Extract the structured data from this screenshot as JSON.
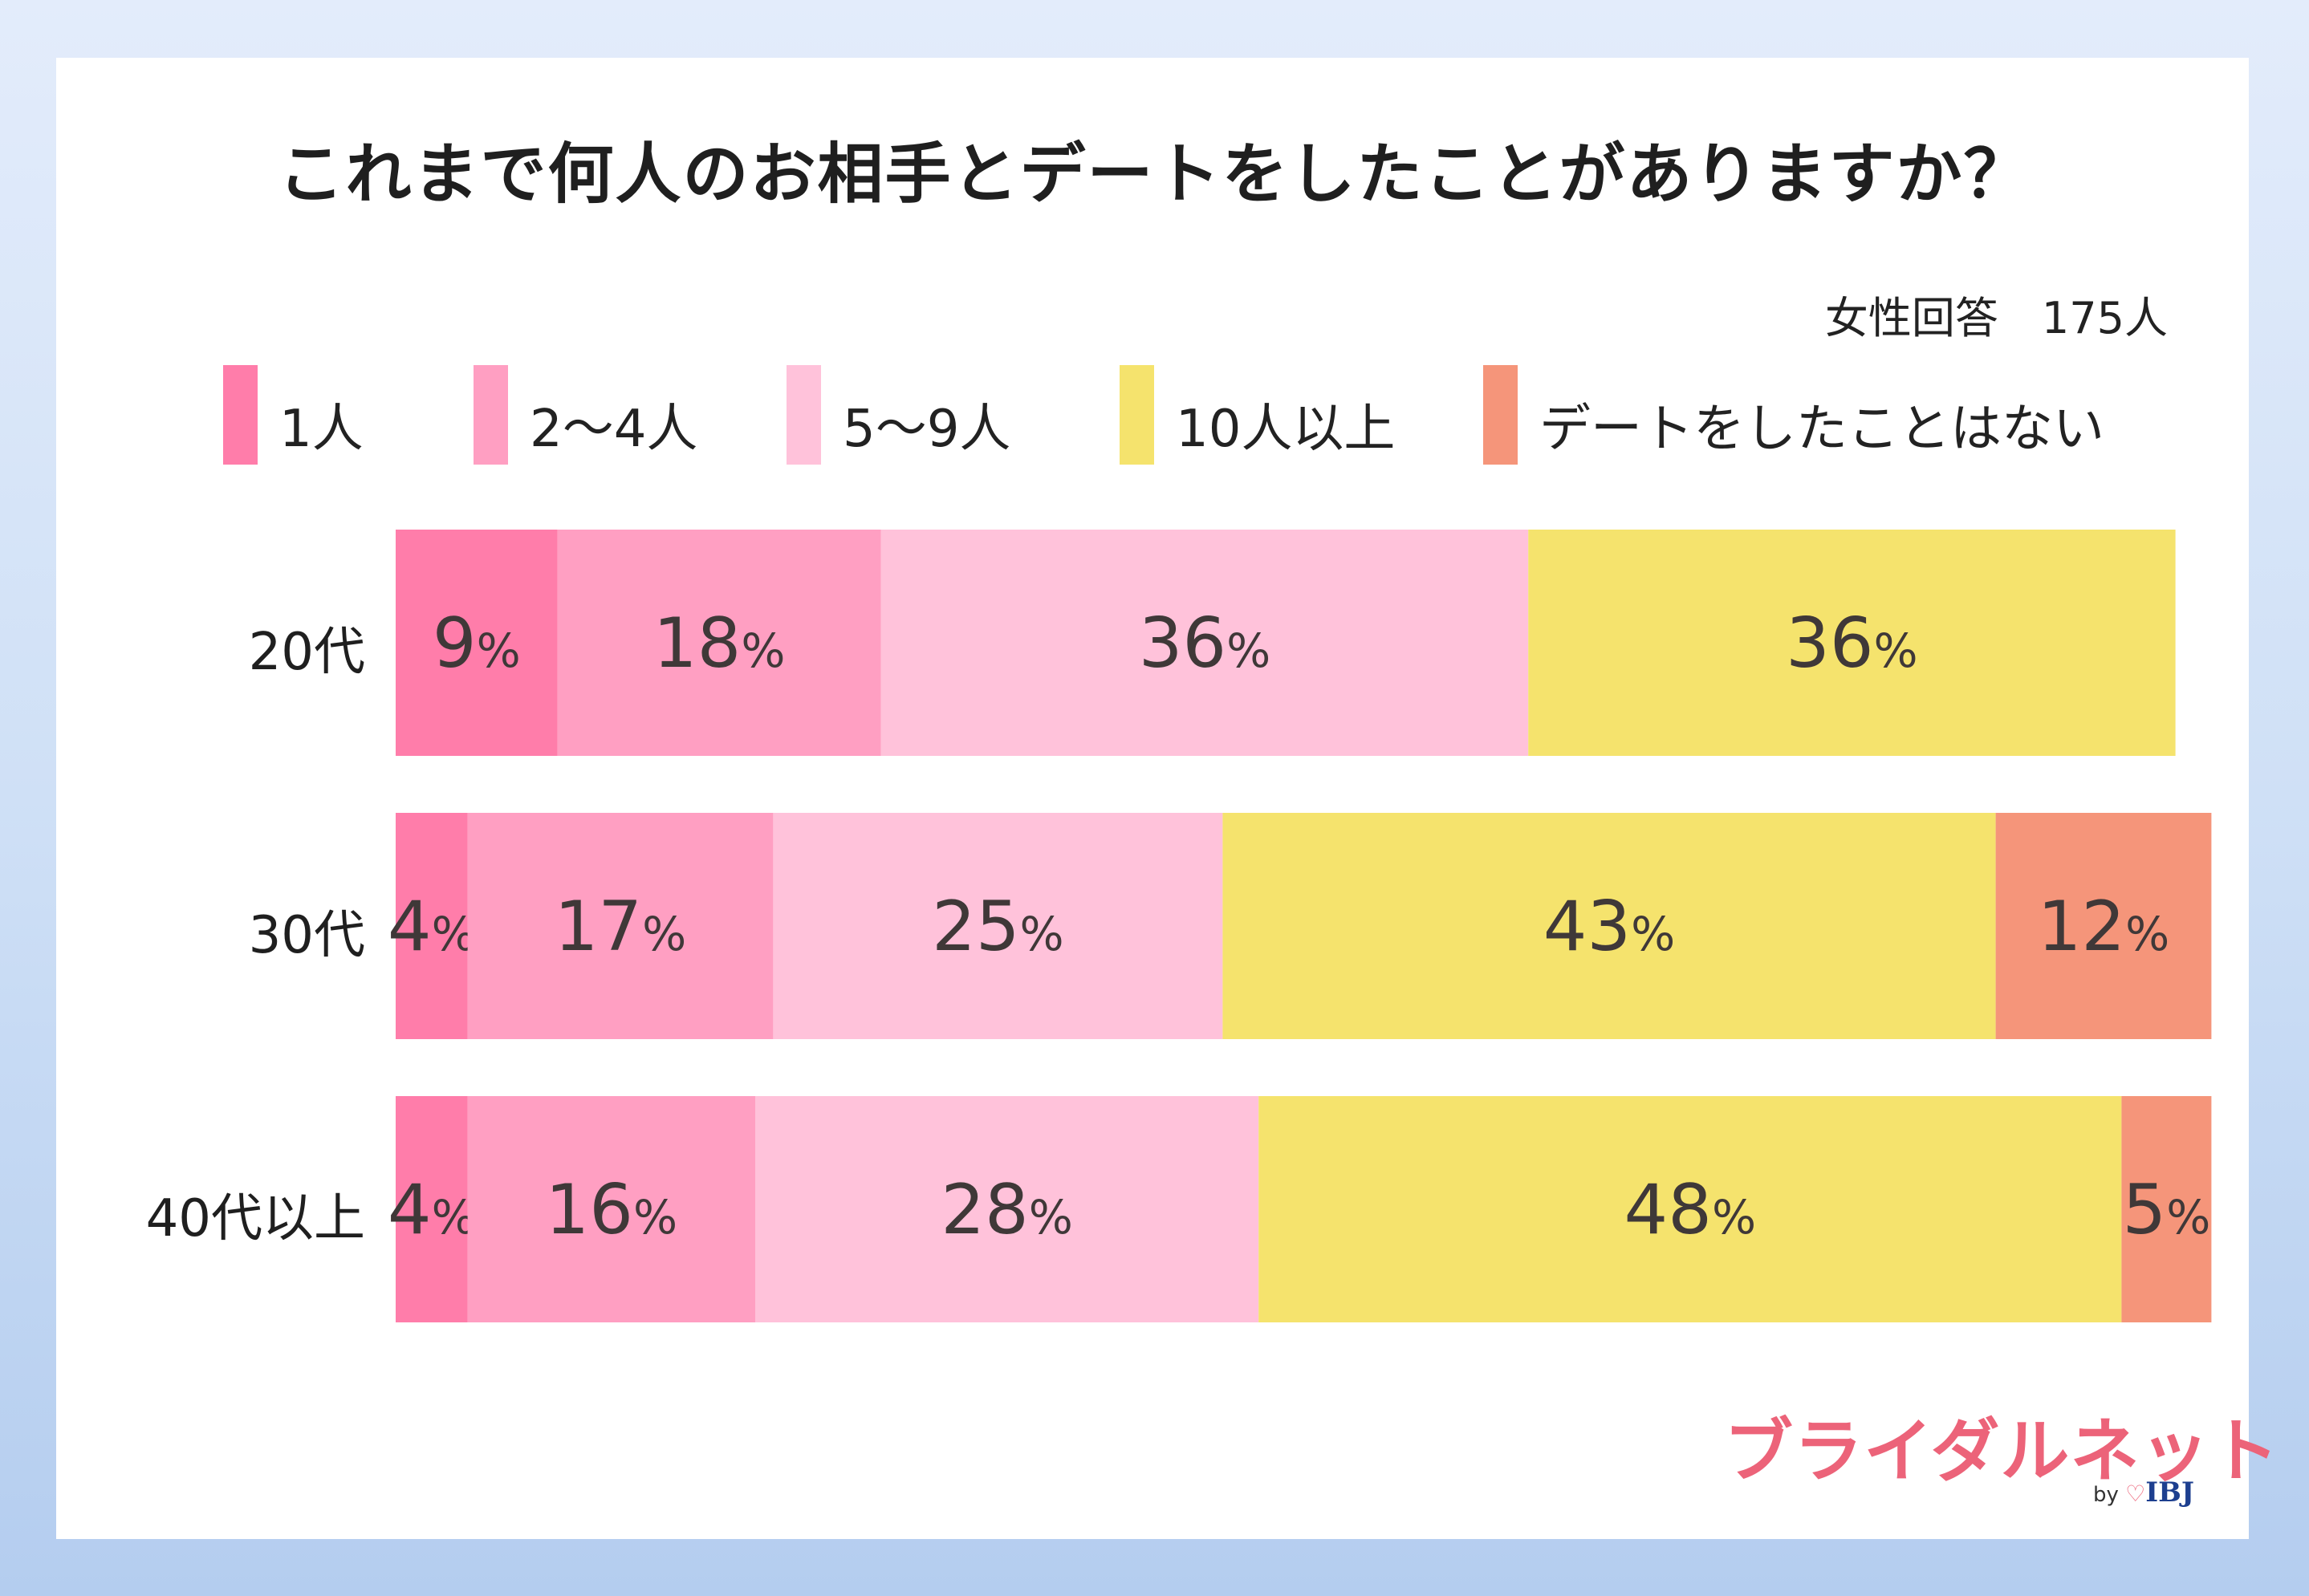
{
  "title": "これまで何人のお相手とデートをしたことがありますか？",
  "note": "女性回答　175人",
  "brand": {
    "logo_text": "ブライダルネット",
    "by": "by",
    "company": "IBJ"
  },
  "chart_data": {
    "type": "bar",
    "orientation": "horizontal",
    "stacked": true,
    "title": "これまで何人のお相手とデートをしたことがありますか？",
    "categories": [
      "20代",
      "30代",
      "40代以上"
    ],
    "series": [
      {
        "name": "1人",
        "color": "#ff7daa",
        "values": [
          9,
          4,
          4
        ],
        "labels": [
          "9%",
          "4%",
          "4%"
        ]
      },
      {
        "name": "2～4人",
        "color": "#ff9fc2",
        "values": [
          18,
          17,
          16
        ],
        "labels": [
          "18%",
          "17%",
          "16%"
        ]
      },
      {
        "name": "5～9人",
        "color": "#ffc2da",
        "values": [
          36,
          25,
          28
        ],
        "labels": [
          "36%",
          "25%",
          "28%"
        ]
      },
      {
        "name": "10人以上",
        "color": "#f5e36d",
        "values": [
          36,
          43,
          48
        ],
        "labels": [
          "36%",
          "43%",
          "48%"
        ]
      },
      {
        "name": "デートをしたことはない",
        "color": "#f5957a",
        "values": [
          0,
          12,
          5
        ],
        "labels": [
          "",
          "12%",
          "5%"
        ]
      }
    ],
    "xlim": [
      0,
      100
    ],
    "legend": "top",
    "grid": false
  }
}
